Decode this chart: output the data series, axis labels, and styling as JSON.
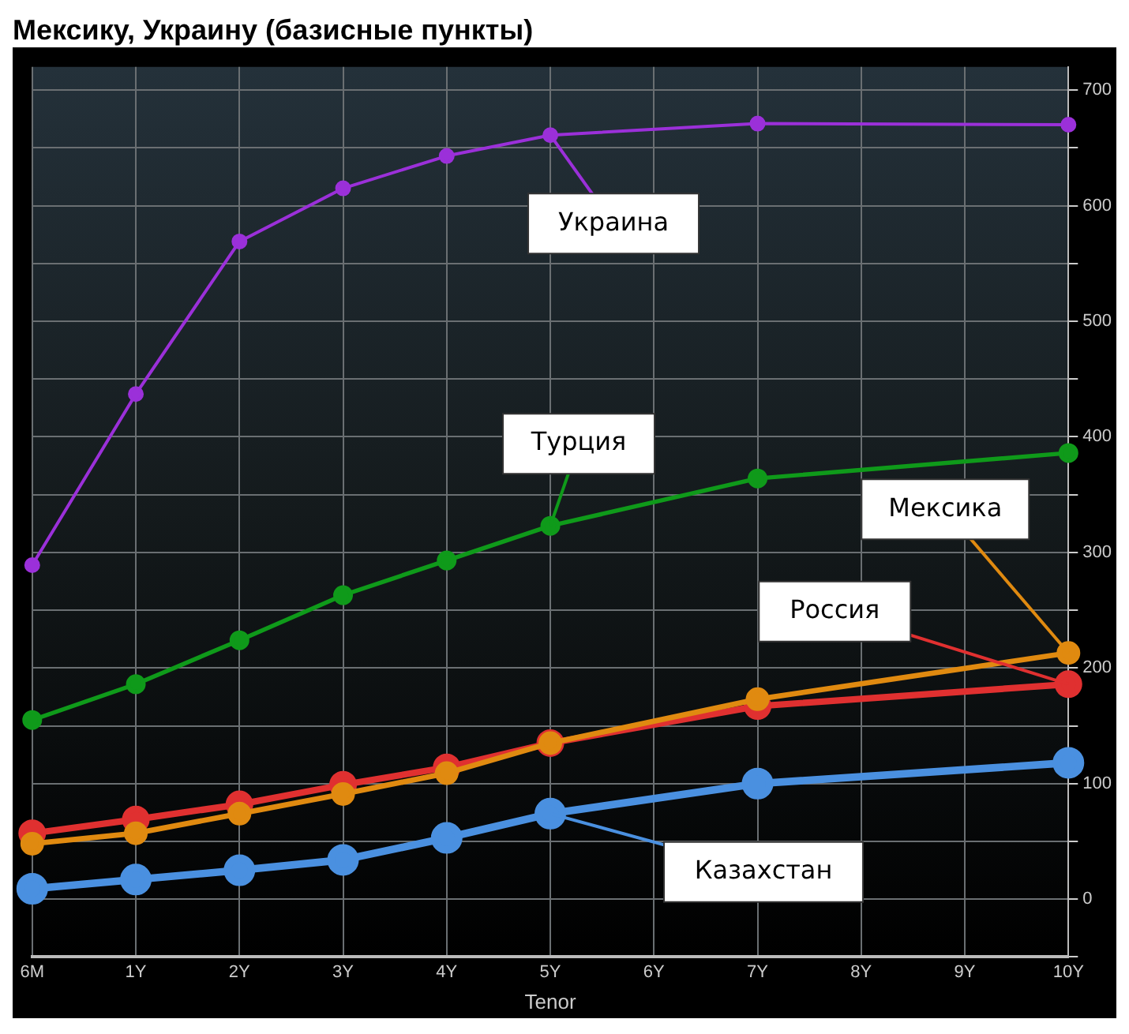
{
  "chart_data": {
    "type": "line",
    "title": "Мексику, Украину (базисные пункты)",
    "xlabel": "Tenor",
    "categories": [
      "6M",
      "1Y",
      "2Y",
      "3Y",
      "4Y",
      "5Y",
      "6Y",
      "7Y",
      "8Y",
      "9Y",
      "10Y"
    ],
    "series": [
      {
        "name": "Украина",
        "color": "#9b30d9",
        "values": [
          289,
          437,
          569,
          615,
          643,
          661,
          null,
          671,
          null,
          null,
          670
        ]
      },
      {
        "name": "Турция",
        "color": "#0f9a1a",
        "values": [
          155,
          186,
          224,
          263,
          293,
          323,
          null,
          364,
          null,
          null,
          386
        ]
      },
      {
        "name": "Мексика",
        "color": "#e08a10",
        "values": [
          48,
          57,
          74,
          91,
          109,
          135,
          null,
          173,
          null,
          null,
          213
        ]
      },
      {
        "name": "Россия",
        "color": "#e03030",
        "values": [
          57,
          69,
          82,
          99,
          114,
          135,
          null,
          167,
          null,
          null,
          186
        ]
      },
      {
        "name": "Казахстан",
        "color": "#4a90e0",
        "values": [
          9,
          17,
          25,
          34,
          53,
          74,
          null,
          100,
          null,
          null,
          118
        ]
      }
    ],
    "ylim": [
      -50,
      720
    ],
    "yticks": [
      {
        "value": -50,
        "label": null
      },
      0,
      {
        "value": 50,
        "label": null
      },
      100,
      {
        "value": 150,
        "label": null
      },
      200,
      {
        "value": 250,
        "label": null
      },
      300,
      {
        "value": 350,
        "label": null
      },
      400,
      {
        "value": 450,
        "label": null
      },
      500,
      {
        "value": 550,
        "label": null
      },
      600,
      {
        "value": 650,
        "label": null
      },
      700
    ],
    "grid": true,
    "legend": false,
    "marker": "circle",
    "line_style": "solid"
  }
}
